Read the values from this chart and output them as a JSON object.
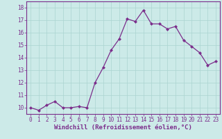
{
  "x": [
    0,
    1,
    2,
    3,
    4,
    5,
    6,
    7,
    8,
    9,
    10,
    11,
    12,
    13,
    14,
    15,
    16,
    17,
    18,
    19,
    20,
    21,
    22,
    23
  ],
  "y": [
    10.0,
    9.8,
    10.2,
    10.5,
    10.0,
    10.0,
    10.1,
    10.0,
    12.0,
    13.2,
    14.6,
    15.5,
    17.1,
    16.9,
    17.8,
    16.7,
    16.7,
    16.3,
    16.5,
    15.4,
    14.9,
    14.4,
    13.4,
    13.7
  ],
  "line_color": "#7b2d8b",
  "marker": "D",
  "marker_size": 2.0,
  "bg_color": "#cceae8",
  "grid_color": "#aad4d0",
  "xlabel": "Windchill (Refroidissement éolien,°C)",
  "ylim": [
    9.5,
    18.5
  ],
  "xlim": [
    -0.5,
    23.5
  ],
  "yticks": [
    10,
    11,
    12,
    13,
    14,
    15,
    16,
    17,
    18
  ],
  "xticks": [
    0,
    1,
    2,
    3,
    4,
    5,
    6,
    7,
    8,
    9,
    10,
    11,
    12,
    13,
    14,
    15,
    16,
    17,
    18,
    19,
    20,
    21,
    22,
    23
  ],
  "tick_fontsize": 5.5,
  "xlabel_fontsize": 6.5,
  "label_color": "#7b2d8b",
  "axis_color": "#7b2d8b",
  "linewidth": 0.9
}
